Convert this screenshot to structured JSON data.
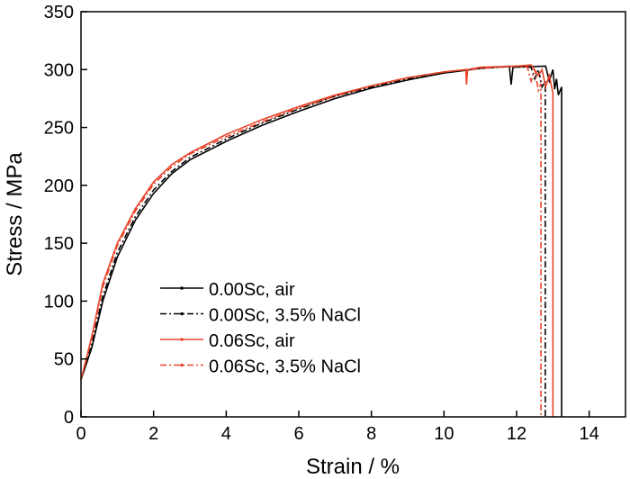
{
  "chart_data": {
    "type": "line",
    "xlabel": "Strain / %",
    "ylabel": "Stress / MPa",
    "xlim": [
      0,
      15
    ],
    "ylim": [
      0,
      350
    ],
    "xticks": [
      0,
      2,
      4,
      6,
      8,
      10,
      12,
      14
    ],
    "yticks": [
      0,
      50,
      100,
      150,
      200,
      250,
      300,
      350
    ],
    "grid": false,
    "legend_position": "lower-left",
    "series": [
      {
        "name": "0.00Sc, air",
        "color": "#000000",
        "dash": "solid",
        "points": [
          [
            0,
            32
          ],
          [
            0.3,
            60
          ],
          [
            0.6,
            100
          ],
          [
            1,
            138
          ],
          [
            1.5,
            170
          ],
          [
            2,
            193
          ],
          [
            2.5,
            210
          ],
          [
            3,
            222
          ],
          [
            4,
            238
          ],
          [
            5,
            252
          ],
          [
            6,
            264
          ],
          [
            7,
            275
          ],
          [
            8,
            284
          ],
          [
            9,
            291
          ],
          [
            10,
            297
          ],
          [
            11,
            301
          ],
          [
            11.8,
            303
          ],
          [
            11.85,
            287
          ],
          [
            11.9,
            302
          ],
          [
            12.8,
            303
          ],
          [
            12.9,
            290
          ],
          [
            13.0,
            300
          ],
          [
            13.05,
            283
          ],
          [
            13.1,
            292
          ],
          [
            13.15,
            278
          ],
          [
            13.24,
            285
          ],
          [
            13.24,
            0
          ]
        ]
      },
      {
        "name": "0.00Sc, 3.5% NaCl",
        "color": "#000000",
        "dash": "dashdot",
        "points": [
          [
            0,
            32
          ],
          [
            0.3,
            63
          ],
          [
            0.6,
            104
          ],
          [
            1,
            142
          ],
          [
            1.5,
            173
          ],
          [
            2,
            196
          ],
          [
            2.5,
            212
          ],
          [
            3,
            224
          ],
          [
            4,
            240
          ],
          [
            5,
            254
          ],
          [
            6,
            266
          ],
          [
            7,
            277
          ],
          [
            8,
            285
          ],
          [
            9,
            292
          ],
          [
            10,
            298
          ],
          [
            11,
            301
          ],
          [
            12,
            303
          ],
          [
            12.4,
            302
          ],
          [
            12.5,
            292
          ],
          [
            12.6,
            300
          ],
          [
            12.7,
            285
          ],
          [
            12.79,
            290
          ],
          [
            12.79,
            0
          ]
        ]
      },
      {
        "name": "0.06Sc, air",
        "color": "#e8442a",
        "dash": "solid",
        "points": [
          [
            0,
            32
          ],
          [
            0.3,
            70
          ],
          [
            0.6,
            115
          ],
          [
            1,
            150
          ],
          [
            1.5,
            180
          ],
          [
            2,
            203
          ],
          [
            2.5,
            218
          ],
          [
            3,
            228
          ],
          [
            4,
            244
          ],
          [
            5,
            257
          ],
          [
            6,
            268
          ],
          [
            7,
            278
          ],
          [
            8,
            286
          ],
          [
            9,
            293
          ],
          [
            10,
            298
          ],
          [
            10.6,
            300
          ],
          [
            10.62,
            287
          ],
          [
            10.65,
            300
          ],
          [
            11,
            302
          ],
          [
            12,
            303
          ],
          [
            12.4,
            304
          ],
          [
            12.6,
            295
          ],
          [
            12.7,
            300
          ],
          [
            12.8,
            285
          ],
          [
            12.9,
            295
          ],
          [
            13.0,
            280
          ],
          [
            13.0,
            255
          ],
          [
            13.0,
            0
          ]
        ]
      },
      {
        "name": "0.06Sc, 3.5% NaCl",
        "color": "#e8442a",
        "dash": "dashdot",
        "points": [
          [
            0,
            32
          ],
          [
            0.3,
            68
          ],
          [
            0.6,
            112
          ],
          [
            1,
            148
          ],
          [
            1.5,
            178
          ],
          [
            2,
            201
          ],
          [
            2.5,
            216
          ],
          [
            3,
            227
          ],
          [
            4,
            242
          ],
          [
            5,
            255
          ],
          [
            6,
            267
          ],
          [
            7,
            277
          ],
          [
            8,
            286
          ],
          [
            9,
            293
          ],
          [
            10,
            298
          ],
          [
            11,
            301
          ],
          [
            12,
            303
          ],
          [
            12.3,
            302
          ],
          [
            12.4,
            290
          ],
          [
            12.5,
            300
          ],
          [
            12.6,
            282
          ],
          [
            12.67,
            288
          ],
          [
            12.67,
            0
          ]
        ]
      }
    ]
  }
}
